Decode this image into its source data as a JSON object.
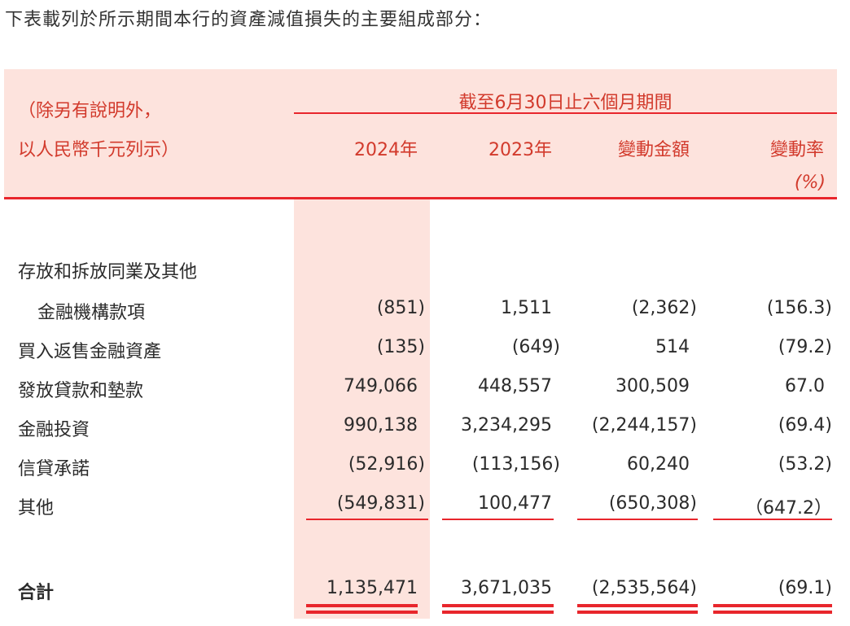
{
  "intro": "下表載列於所示期間本行的資產減值損失的主要組成部分：",
  "table": {
    "unit_note_line1": "（除另有說明外，",
    "unit_note_line2": "以人民幣千元列示）",
    "period_header": "截至6月30日止六個月期間",
    "col_2024": "2024年",
    "col_2023": "2023年",
    "col_change": "變動金額",
    "col_rate": "變動率",
    "col_rate_unit": "(%)",
    "rows": [
      {
        "label": "存放和拆放同業及其他",
        "v2024": "",
        "v2023": "",
        "change": "",
        "rate": ""
      },
      {
        "label": "金融機構款項",
        "v2024": "(851)",
        "v2023": "1,511",
        "change": "(2,362)",
        "rate": "(156.3)"
      },
      {
        "label": "買入返售金融資產",
        "v2024": "(135)",
        "v2023": "(649)",
        "change": "514",
        "rate": "(79.2)"
      },
      {
        "label": "發放貸款和墊款",
        "v2024": "749,066",
        "v2023": "448,557",
        "change": "300,509",
        "rate": "67.0"
      },
      {
        "label": "金融投資",
        "v2024": "990,138",
        "v2023": "3,234,295",
        "change": "(2,244,157)",
        "rate": "(69.4)"
      },
      {
        "label": "信貸承諾",
        "v2024": "(52,916)",
        "v2023": "(113,156)",
        "change": "60,240",
        "rate": "(53.2)"
      },
      {
        "label": "其他",
        "v2024": "(549,831)",
        "v2023": "100,477",
        "change": "(650,308)",
        "rate": "（647.2）"
      }
    ],
    "total": {
      "label": "合計",
      "v2024": "1,135,471",
      "v2023": "3,671,035",
      "change": "(2,535,564)",
      "rate": "(69.1)"
    }
  },
  "colors": {
    "accent_red": "#e8262c",
    "header_bg": "#fde3dd"
  }
}
